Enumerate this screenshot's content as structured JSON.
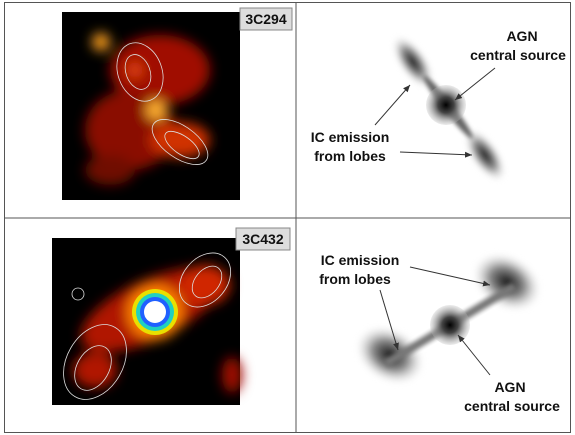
{
  "panels": [
    {
      "label": "3C294"
    },
    {
      "annotations": [
        {
          "lines": [
            "AGN",
            "central source"
          ]
        },
        {
          "lines": [
            "IC emission",
            "from lobes"
          ]
        }
      ]
    },
    {
      "label": "3C432"
    },
    {
      "annotations": [
        {
          "lines": [
            "IC emission",
            "from lobes"
          ]
        },
        {
          "lines": [
            "AGN",
            "central source"
          ]
        }
      ]
    }
  ]
}
